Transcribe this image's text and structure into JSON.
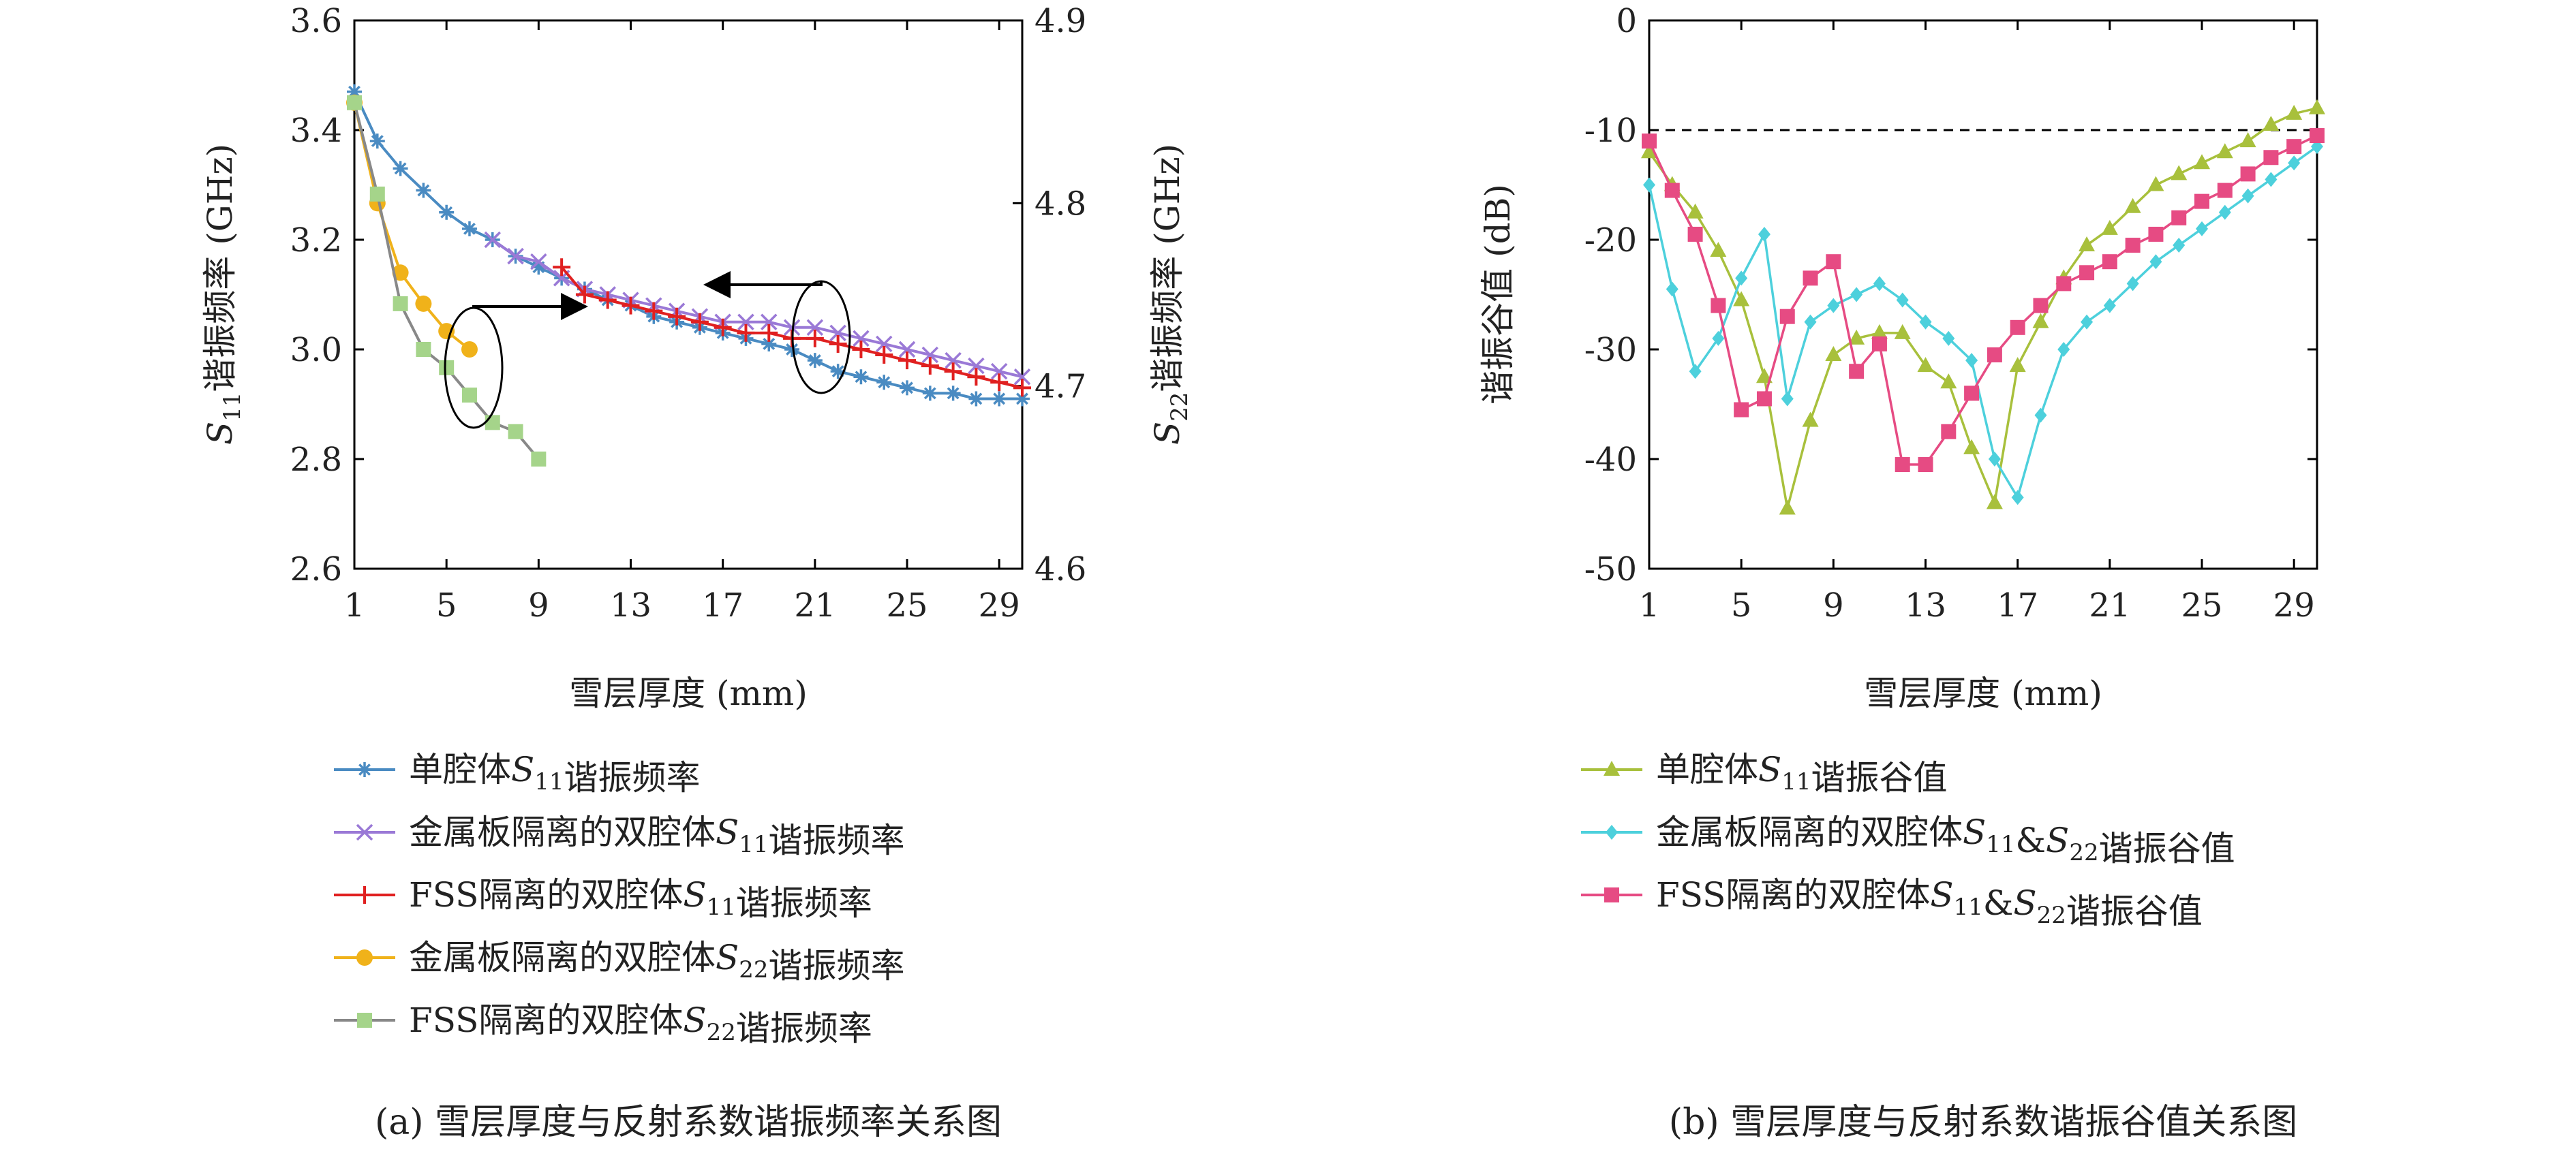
{
  "chart_data": [
    {
      "type": "line",
      "caption": "(a) 雪层厚度与反射系数谐振频率关系图",
      "xlabel": "雪层厚度 (mm)",
      "ylabel_left": "S11谐振频率 (GHz)",
      "ylabel_right": "S22谐振频率 (GHz)",
      "xlim": [
        1,
        30
      ],
      "ylim_left": [
        2.6,
        3.6
      ],
      "ylim_right": [
        4.6,
        4.9
      ],
      "xticks": [
        1,
        5,
        9,
        13,
        17,
        21,
        25,
        29
      ],
      "yticks_left": [
        2.6,
        2.8,
        3.0,
        3.2,
        3.4,
        3.6
      ],
      "yticks_right": [
        4.6,
        4.7,
        4.8,
        4.9
      ],
      "grid": false,
      "legend_position": "below",
      "series": [
        {
          "name": "单腔体S11谐振频率",
          "axis": "left",
          "color": "#4a8bc2",
          "marker": "asterisk",
          "x": [
            1,
            2,
            3,
            4,
            5,
            6,
            7,
            8,
            9,
            10,
            11,
            12,
            13,
            14,
            15,
            16,
            17,
            18,
            19,
            20,
            21,
            22,
            23,
            24,
            25,
            26,
            27,
            28,
            29,
            30
          ],
          "values": [
            3.47,
            3.38,
            3.33,
            3.29,
            3.25,
            3.22,
            3.2,
            3.17,
            3.15,
            3.13,
            3.11,
            3.09,
            3.08,
            3.06,
            3.05,
            3.04,
            3.03,
            3.02,
            3.01,
            3.0,
            2.98,
            2.96,
            2.95,
            2.94,
            2.93,
            2.92,
            2.92,
            2.91,
            2.91,
            2.91
          ]
        },
        {
          "name": "金属板隔离的双腔体S11谐振频率",
          "axis": "left",
          "color": "#9a79d6",
          "marker": "cross",
          "x": [
            7,
            8,
            9,
            10,
            11,
            12,
            13,
            14,
            15,
            16,
            17,
            18,
            19,
            20,
            21,
            22,
            23,
            24,
            25,
            26,
            27,
            28,
            29,
            30
          ],
          "values": [
            3.2,
            3.17,
            3.16,
            3.13,
            3.11,
            3.1,
            3.09,
            3.08,
            3.07,
            3.06,
            3.05,
            3.05,
            3.05,
            3.04,
            3.04,
            3.03,
            3.02,
            3.01,
            3.0,
            2.99,
            2.98,
            2.97,
            2.96,
            2.95
          ]
        },
        {
          "name": "FSS隔离的双腔体S11谐振频率",
          "axis": "left",
          "color": "#e02020",
          "marker": "plus",
          "x": [
            10,
            11,
            12,
            13,
            14,
            15,
            16,
            17,
            18,
            19,
            20,
            21,
            22,
            23,
            24,
            25,
            26,
            27,
            28,
            29,
            30
          ],
          "values": [
            3.15,
            3.1,
            3.09,
            3.08,
            3.07,
            3.06,
            3.05,
            3.04,
            3.03,
            3.03,
            3.02,
            3.02,
            3.01,
            3.0,
            2.99,
            2.98,
            2.97,
            2.96,
            2.95,
            2.94,
            2.93
          ]
        },
        {
          "name": "金属板隔离的双腔体S22谐振频率",
          "axis": "right",
          "color": "#f0b21a",
          "marker": "circle",
          "x": [
            1,
            2,
            3,
            4,
            5,
            6
          ],
          "values": [
            4.855,
            4.8,
            4.762,
            4.745,
            4.73,
            4.72
          ]
        },
        {
          "name": "FSS隔离的双腔体S22谐振频率",
          "axis": "right",
          "color": "#a5d48a",
          "marker": "square",
          "line_color": "#888888",
          "x": [
            1,
            2,
            3,
            4,
            5,
            6,
            7,
            8,
            9
          ],
          "values": [
            4.855,
            4.805,
            4.745,
            4.72,
            4.71,
            4.695,
            4.68,
            4.675,
            4.66
          ]
        }
      ]
    },
    {
      "type": "line",
      "caption": "(b) 雪层厚度与反射系数谐振谷值关系图",
      "xlabel": "雪层厚度 (mm)",
      "ylabel": "谐振谷值 (dB)",
      "xlim": [
        1,
        30
      ],
      "ylim": [
        -50,
        0
      ],
      "xticks": [
        1,
        5,
        9,
        13,
        17,
        21,
        25,
        29
      ],
      "yticks": [
        0,
        -10,
        -20,
        -30,
        -40,
        -50
      ],
      "reference_line": -10,
      "grid": false,
      "legend_position": "below",
      "series": [
        {
          "name": "单腔体S11谐振谷值",
          "color": "#a8c03c",
          "marker": "triangle",
          "x": [
            1,
            2,
            3,
            4,
            5,
            6,
            7,
            8,
            9,
            10,
            11,
            12,
            13,
            14,
            15,
            16,
            17,
            18,
            19,
            20,
            21,
            22,
            23,
            24,
            25,
            26,
            27,
            28,
            29,
            30
          ],
          "values": [
            -12,
            -15,
            -17.5,
            -21,
            -25.5,
            -32.5,
            -44.5,
            -36.5,
            -30.5,
            -29,
            -28.5,
            -28.5,
            -31.5,
            -33,
            -39,
            -44,
            -31.5,
            -27.5,
            -23.5,
            -20.5,
            -19,
            -17,
            -15,
            -14,
            -13,
            -12,
            -11,
            -9.5,
            -8.5,
            -8
          ]
        },
        {
          "name": "金属板隔离的双腔体S11&S22谐振谷值",
          "color": "#4dd0dc",
          "marker": "diamond",
          "x": [
            1,
            2,
            3,
            4,
            5,
            6,
            7,
            8,
            9,
            10,
            11,
            12,
            13,
            14,
            15,
            16,
            17,
            18,
            19,
            20,
            21,
            22,
            23,
            24,
            25,
            26,
            27,
            28,
            29,
            30
          ],
          "values": [
            -15,
            -24.5,
            -32,
            -29,
            -23.5,
            -19.5,
            -34.5,
            -27.5,
            -26,
            -25,
            -24,
            -25.5,
            -27.5,
            -29,
            -31,
            -40,
            -43.5,
            -36,
            -30,
            -27.5,
            -26,
            -24,
            -22,
            -20.5,
            -19,
            -17.5,
            -16,
            -14.5,
            -13,
            -11.5
          ]
        },
        {
          "name": "FSS隔离的双腔体S11&S22谐振谷值",
          "color": "#e64b83",
          "marker": "square",
          "x": [
            1,
            2,
            3,
            4,
            5,
            6,
            7,
            8,
            9,
            10,
            11,
            12,
            13,
            14,
            15,
            16,
            17,
            18,
            19,
            20,
            21,
            22,
            23,
            24,
            25,
            26,
            27,
            28,
            29,
            30
          ],
          "values": [
            -11,
            -15.5,
            -19.5,
            -26,
            -35.5,
            -34.5,
            -27,
            -23.5,
            -22,
            -32,
            -29.5,
            -40.5,
            -40.5,
            -37.5,
            -34,
            -30.5,
            -28,
            -26,
            -24,
            -23,
            -22,
            -20.5,
            -19.5,
            -18,
            -16.5,
            -15.5,
            -14,
            -12.5,
            -11.5,
            -10.5
          ]
        }
      ]
    }
  ]
}
